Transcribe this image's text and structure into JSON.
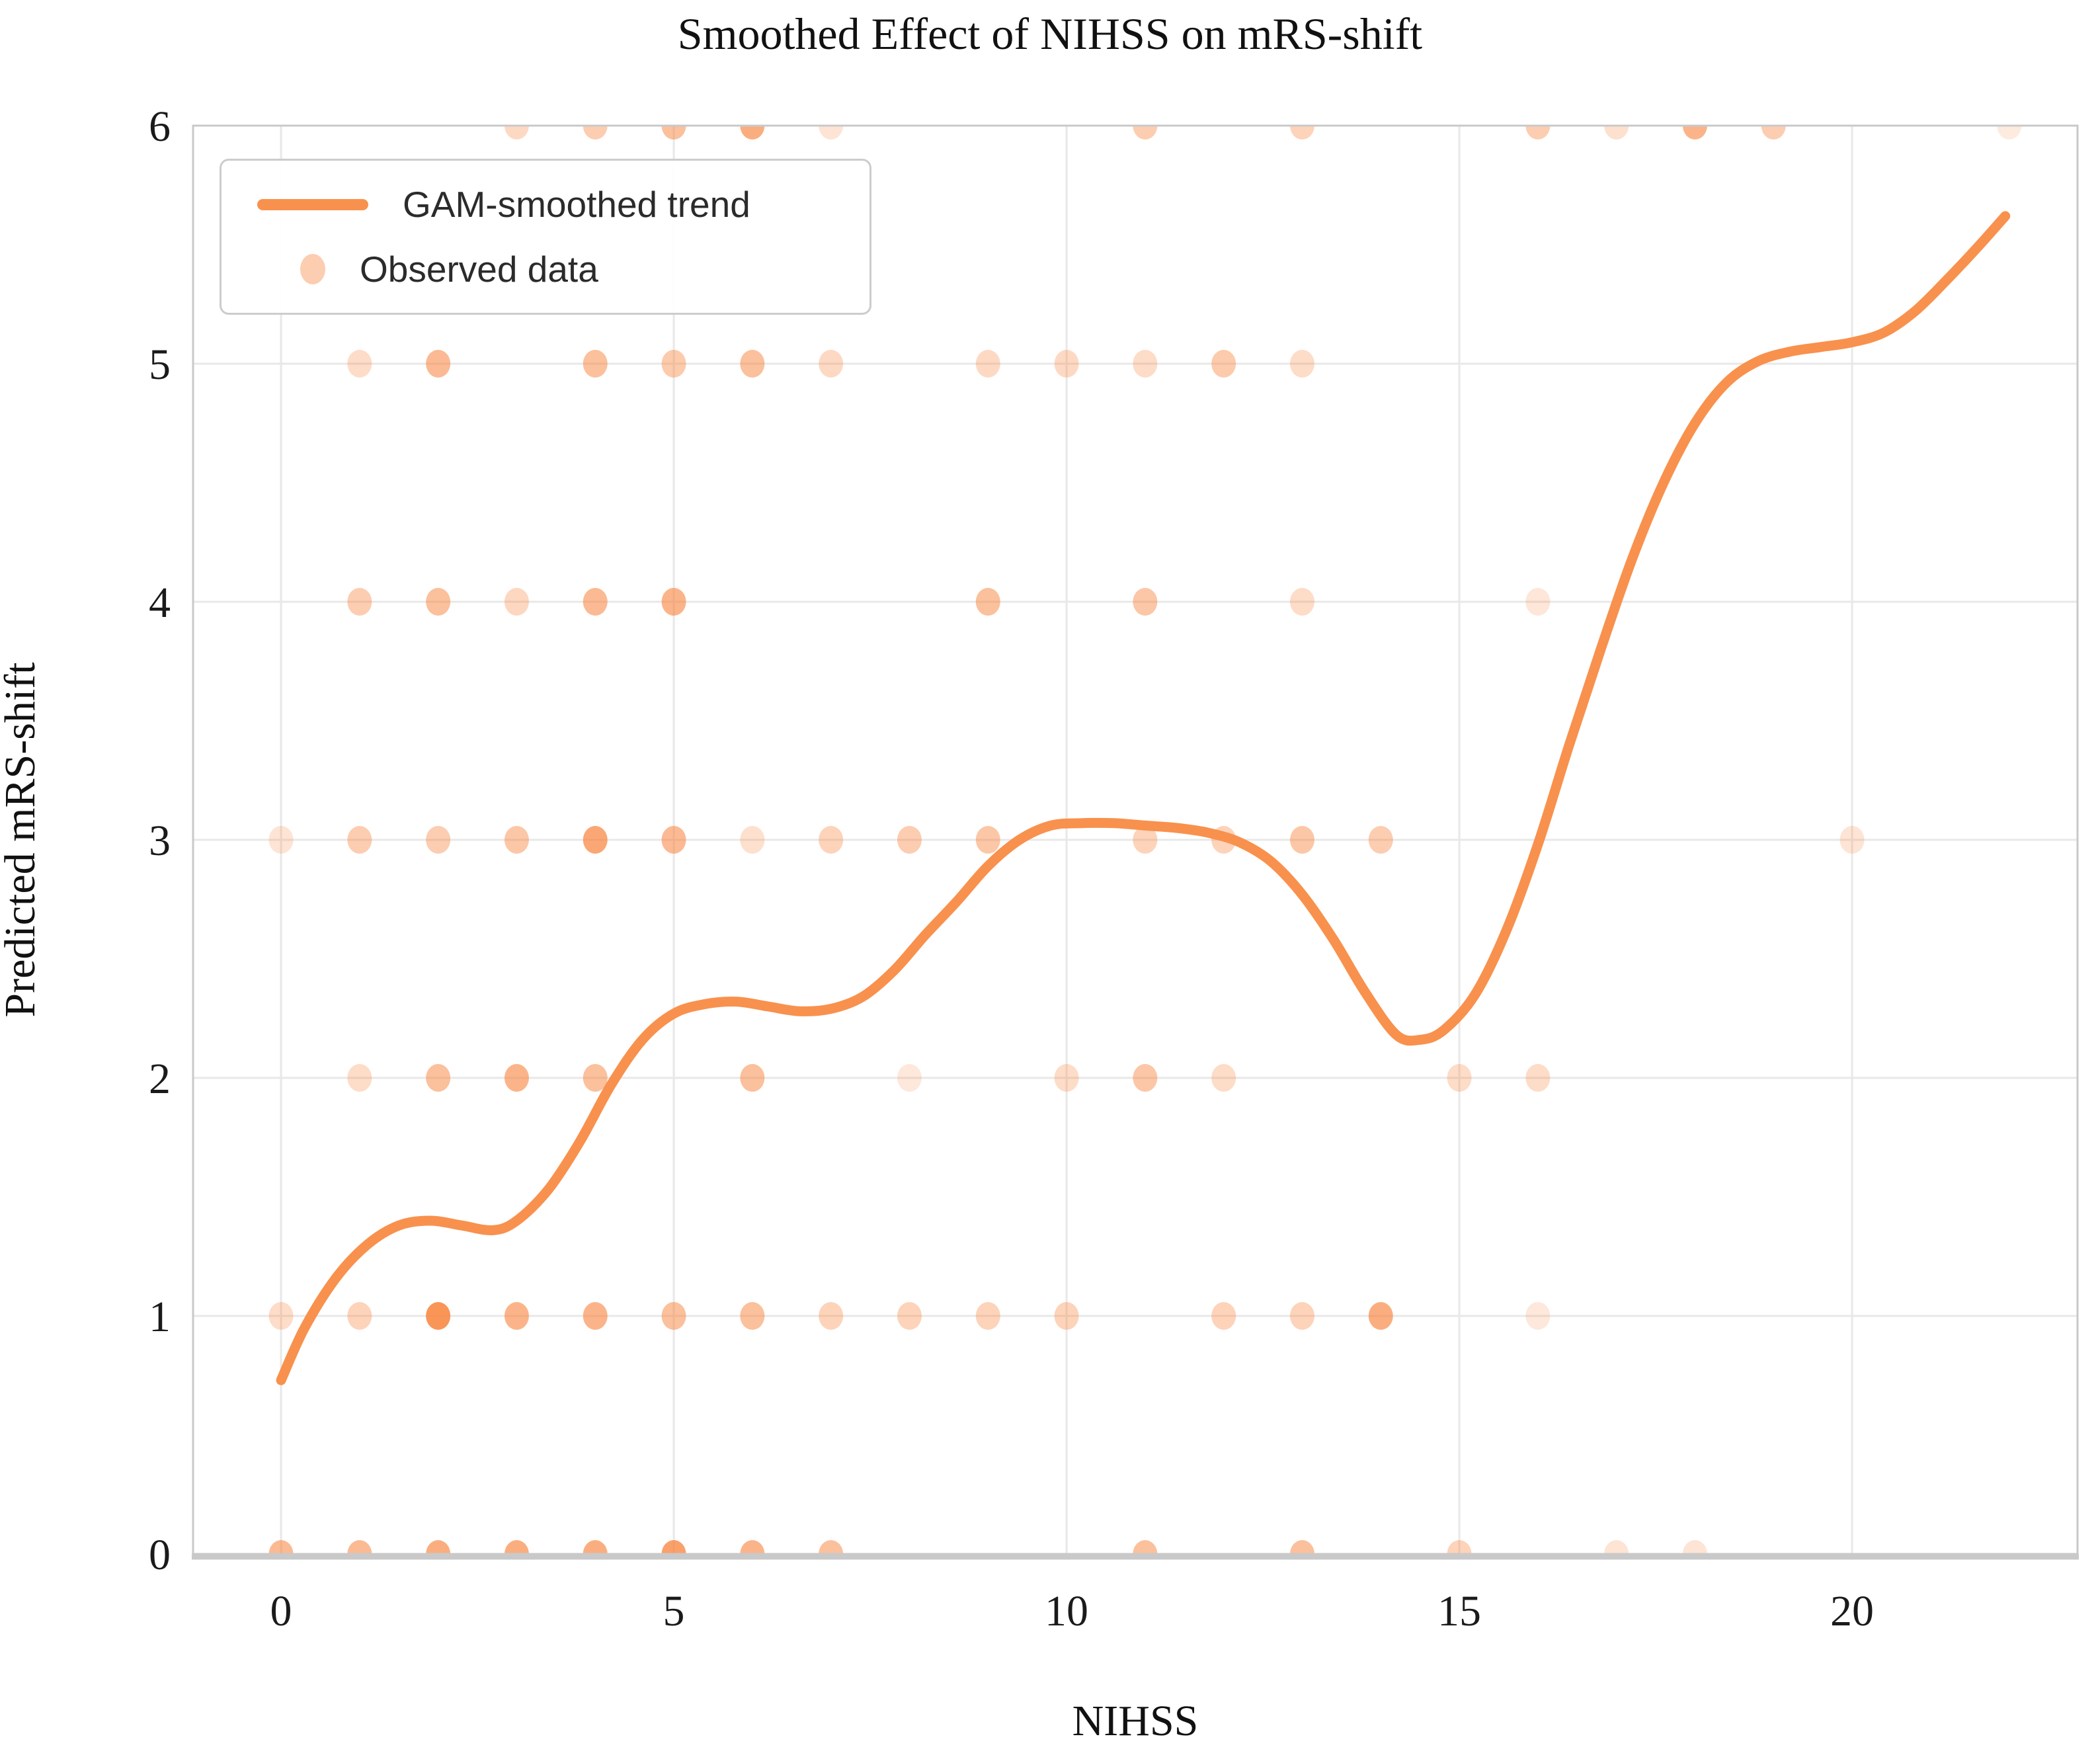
{
  "figure": {
    "title": "Smoothed Effect of NIHSS on mRS-shift"
  },
  "legend": {
    "trend_label": "GAM-smoothed trend",
    "observed_label": "Observed data"
  },
  "chart_data": {
    "type": "line",
    "title": "Smoothed Effect of NIHSS on mRS-shift",
    "xlabel": "NIHSS",
    "ylabel": "Predicted mRS-shift",
    "xlim": [
      -1.12,
      22.87
    ],
    "ylim": [
      0,
      6
    ],
    "x_tick_values": [
      0,
      5,
      10,
      15,
      20
    ],
    "x_tick_labels": [
      "0",
      "5",
      "10",
      "15",
      "20"
    ],
    "y_tick_values": [
      0,
      1,
      2,
      3,
      4,
      5,
      6
    ],
    "y_tick_labels": [
      "0",
      "1",
      "2",
      "3",
      "4",
      "5",
      "6"
    ],
    "grid": true,
    "legend_position": "upper-left",
    "colors": {
      "line": "#F8914D",
      "scatter": "#F8823A",
      "grid": "#E8E8E8",
      "spine": "#C9C9C9",
      "text": "#1A1A1A"
    },
    "series": [
      {
        "name": "GAM-smoothed trend",
        "type": "line",
        "color": "#F8914D",
        "line_width": 15,
        "points": [
          [
            0,
            0.73
          ],
          [
            0.3,
            0.95
          ],
          [
            0.7,
            1.16
          ],
          [
            1.1,
            1.3
          ],
          [
            1.5,
            1.38
          ],
          [
            1.9,
            1.4
          ],
          [
            2.3,
            1.38
          ],
          [
            2.7,
            1.36
          ],
          [
            3.0,
            1.4
          ],
          [
            3.4,
            1.53
          ],
          [
            3.8,
            1.73
          ],
          [
            4.2,
            1.97
          ],
          [
            4.6,
            2.16
          ],
          [
            5.0,
            2.27
          ],
          [
            5.4,
            2.31
          ],
          [
            5.8,
            2.32
          ],
          [
            6.2,
            2.3
          ],
          [
            6.6,
            2.28
          ],
          [
            7.0,
            2.29
          ],
          [
            7.4,
            2.34
          ],
          [
            7.8,
            2.45
          ],
          [
            8.2,
            2.6
          ],
          [
            8.6,
            2.74
          ],
          [
            9.0,
            2.89
          ],
          [
            9.4,
            3.0
          ],
          [
            9.8,
            3.06
          ],
          [
            10.2,
            3.07
          ],
          [
            10.6,
            3.07
          ],
          [
            11.0,
            3.06
          ],
          [
            11.4,
            3.05
          ],
          [
            11.8,
            3.03
          ],
          [
            12.2,
            2.99
          ],
          [
            12.6,
            2.91
          ],
          [
            13.0,
            2.77
          ],
          [
            13.4,
            2.58
          ],
          [
            13.8,
            2.36
          ],
          [
            14.2,
            2.18
          ],
          [
            14.5,
            2.16
          ],
          [
            14.8,
            2.2
          ],
          [
            15.2,
            2.35
          ],
          [
            15.6,
            2.62
          ],
          [
            16.0,
            2.98
          ],
          [
            16.4,
            3.4
          ],
          [
            16.8,
            3.8
          ],
          [
            17.2,
            4.18
          ],
          [
            17.6,
            4.5
          ],
          [
            18.0,
            4.75
          ],
          [
            18.4,
            4.92
          ],
          [
            18.8,
            5.01
          ],
          [
            19.2,
            5.05
          ],
          [
            19.6,
            5.07
          ],
          [
            20.0,
            5.09
          ],
          [
            20.4,
            5.13
          ],
          [
            20.8,
            5.22
          ],
          [
            21.2,
            5.35
          ],
          [
            21.6,
            5.49
          ],
          [
            21.95,
            5.62
          ]
        ]
      },
      {
        "name": "Observed data",
        "type": "scatter",
        "color": "#F8823A",
        "marker_rx": 18.5,
        "marker_ry": 21,
        "points_xya": [
          [
            0,
            0,
            0.55
          ],
          [
            1,
            0,
            0.55
          ],
          [
            2,
            0,
            0.65
          ],
          [
            3,
            0,
            0.65
          ],
          [
            4,
            0,
            0.65
          ],
          [
            5,
            0,
            0.75
          ],
          [
            6,
            0,
            0.6
          ],
          [
            7,
            0,
            0.5
          ],
          [
            11,
            0,
            0.5
          ],
          [
            13,
            0,
            0.5
          ],
          [
            15,
            0,
            0.35
          ],
          [
            17,
            0,
            0.22
          ],
          [
            18,
            0,
            0.22
          ],
          [
            0,
            1,
            0.28
          ],
          [
            1,
            1,
            0.35
          ],
          [
            2,
            1,
            0.85
          ],
          [
            3,
            1,
            0.6
          ],
          [
            4,
            1,
            0.6
          ],
          [
            5,
            1,
            0.5
          ],
          [
            6,
            1,
            0.5
          ],
          [
            7,
            1,
            0.35
          ],
          [
            8,
            1,
            0.35
          ],
          [
            9,
            1,
            0.35
          ],
          [
            10,
            1,
            0.35
          ],
          [
            12,
            1,
            0.35
          ],
          [
            13,
            1,
            0.35
          ],
          [
            14,
            1,
            0.65
          ],
          [
            16,
            1,
            0.18
          ],
          [
            1,
            2,
            0.28
          ],
          [
            2,
            2,
            0.5
          ],
          [
            3,
            2,
            0.6
          ],
          [
            4,
            2,
            0.5
          ],
          [
            6,
            2,
            0.5
          ],
          [
            8,
            2,
            0.18
          ],
          [
            10,
            2,
            0.28
          ],
          [
            11,
            2,
            0.45
          ],
          [
            12,
            2,
            0.28
          ],
          [
            15,
            2,
            0.28
          ],
          [
            16,
            2,
            0.28
          ],
          [
            0,
            3,
            0.22
          ],
          [
            1,
            3,
            0.4
          ],
          [
            2,
            3,
            0.4
          ],
          [
            3,
            3,
            0.45
          ],
          [
            4,
            3,
            0.7
          ],
          [
            5,
            3,
            0.55
          ],
          [
            6,
            3,
            0.25
          ],
          [
            7,
            3,
            0.35
          ],
          [
            8,
            3,
            0.4
          ],
          [
            9,
            3,
            0.45
          ],
          [
            11,
            3,
            0.35
          ],
          [
            12,
            3,
            0.35
          ],
          [
            13,
            3,
            0.45
          ],
          [
            14,
            3,
            0.4
          ],
          [
            20,
            3,
            0.22
          ],
          [
            1,
            4,
            0.4
          ],
          [
            2,
            4,
            0.5
          ],
          [
            3,
            4,
            0.32
          ],
          [
            4,
            4,
            0.55
          ],
          [
            5,
            4,
            0.6
          ],
          [
            9,
            4,
            0.5
          ],
          [
            11,
            4,
            0.45
          ],
          [
            13,
            4,
            0.28
          ],
          [
            16,
            4,
            0.2
          ],
          [
            1,
            5,
            0.28
          ],
          [
            2,
            5,
            0.55
          ],
          [
            4,
            5,
            0.5
          ],
          [
            5,
            5,
            0.42
          ],
          [
            6,
            5,
            0.5
          ],
          [
            7,
            5,
            0.3
          ],
          [
            9,
            5,
            0.3
          ],
          [
            10,
            5,
            0.3
          ],
          [
            11,
            5,
            0.28
          ],
          [
            12,
            5,
            0.42
          ],
          [
            13,
            5,
            0.28
          ],
          [
            3,
            6,
            0.3
          ],
          [
            4,
            6,
            0.4
          ],
          [
            5,
            6,
            0.5
          ],
          [
            6,
            6,
            0.65
          ],
          [
            7,
            6,
            0.22
          ],
          [
            11,
            6,
            0.4
          ],
          [
            13,
            6,
            0.35
          ],
          [
            16,
            6,
            0.4
          ],
          [
            17,
            6,
            0.25
          ],
          [
            18,
            6,
            0.6
          ],
          [
            19,
            6,
            0.4
          ],
          [
            22,
            6,
            0.16
          ]
        ]
      }
    ]
  }
}
